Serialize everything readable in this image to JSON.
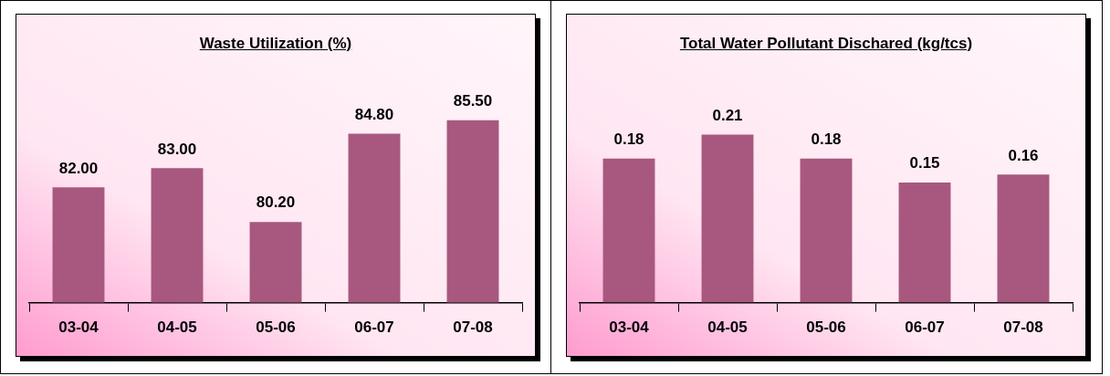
{
  "chart_data": [
    {
      "type": "bar",
      "title": "Waste Utilization (%)",
      "categories": [
        "03-04",
        "04-05",
        "05-06",
        "06-07",
        "07-08"
      ],
      "values": [
        82,
        83,
        80.2,
        84.8,
        85.5
      ],
      "value_labels": [
        "82.00",
        "83.00",
        "80.20",
        "84.80",
        "85.50"
      ],
      "color": "#a8587f",
      "ylim": [
        76,
        91
      ],
      "tick_labels": "x",
      "grid": false,
      "legend": false
    },
    {
      "type": "bar",
      "title": "Total Water Pollutant Dischared (kg/tcs)",
      "categories": [
        "03-04",
        "04-05",
        "05-06",
        "06-07",
        "07-08"
      ],
      "values": [
        0.18,
        0.21,
        0.18,
        0.15,
        0.16
      ],
      "value_labels": [
        "0.18",
        "0.21",
        "0.18",
        "0.15",
        "0.16"
      ],
      "color": "#a8587f",
      "ylim": [
        0,
        0.36
      ],
      "tick_labels": "x",
      "grid": false,
      "legend": false
    }
  ]
}
